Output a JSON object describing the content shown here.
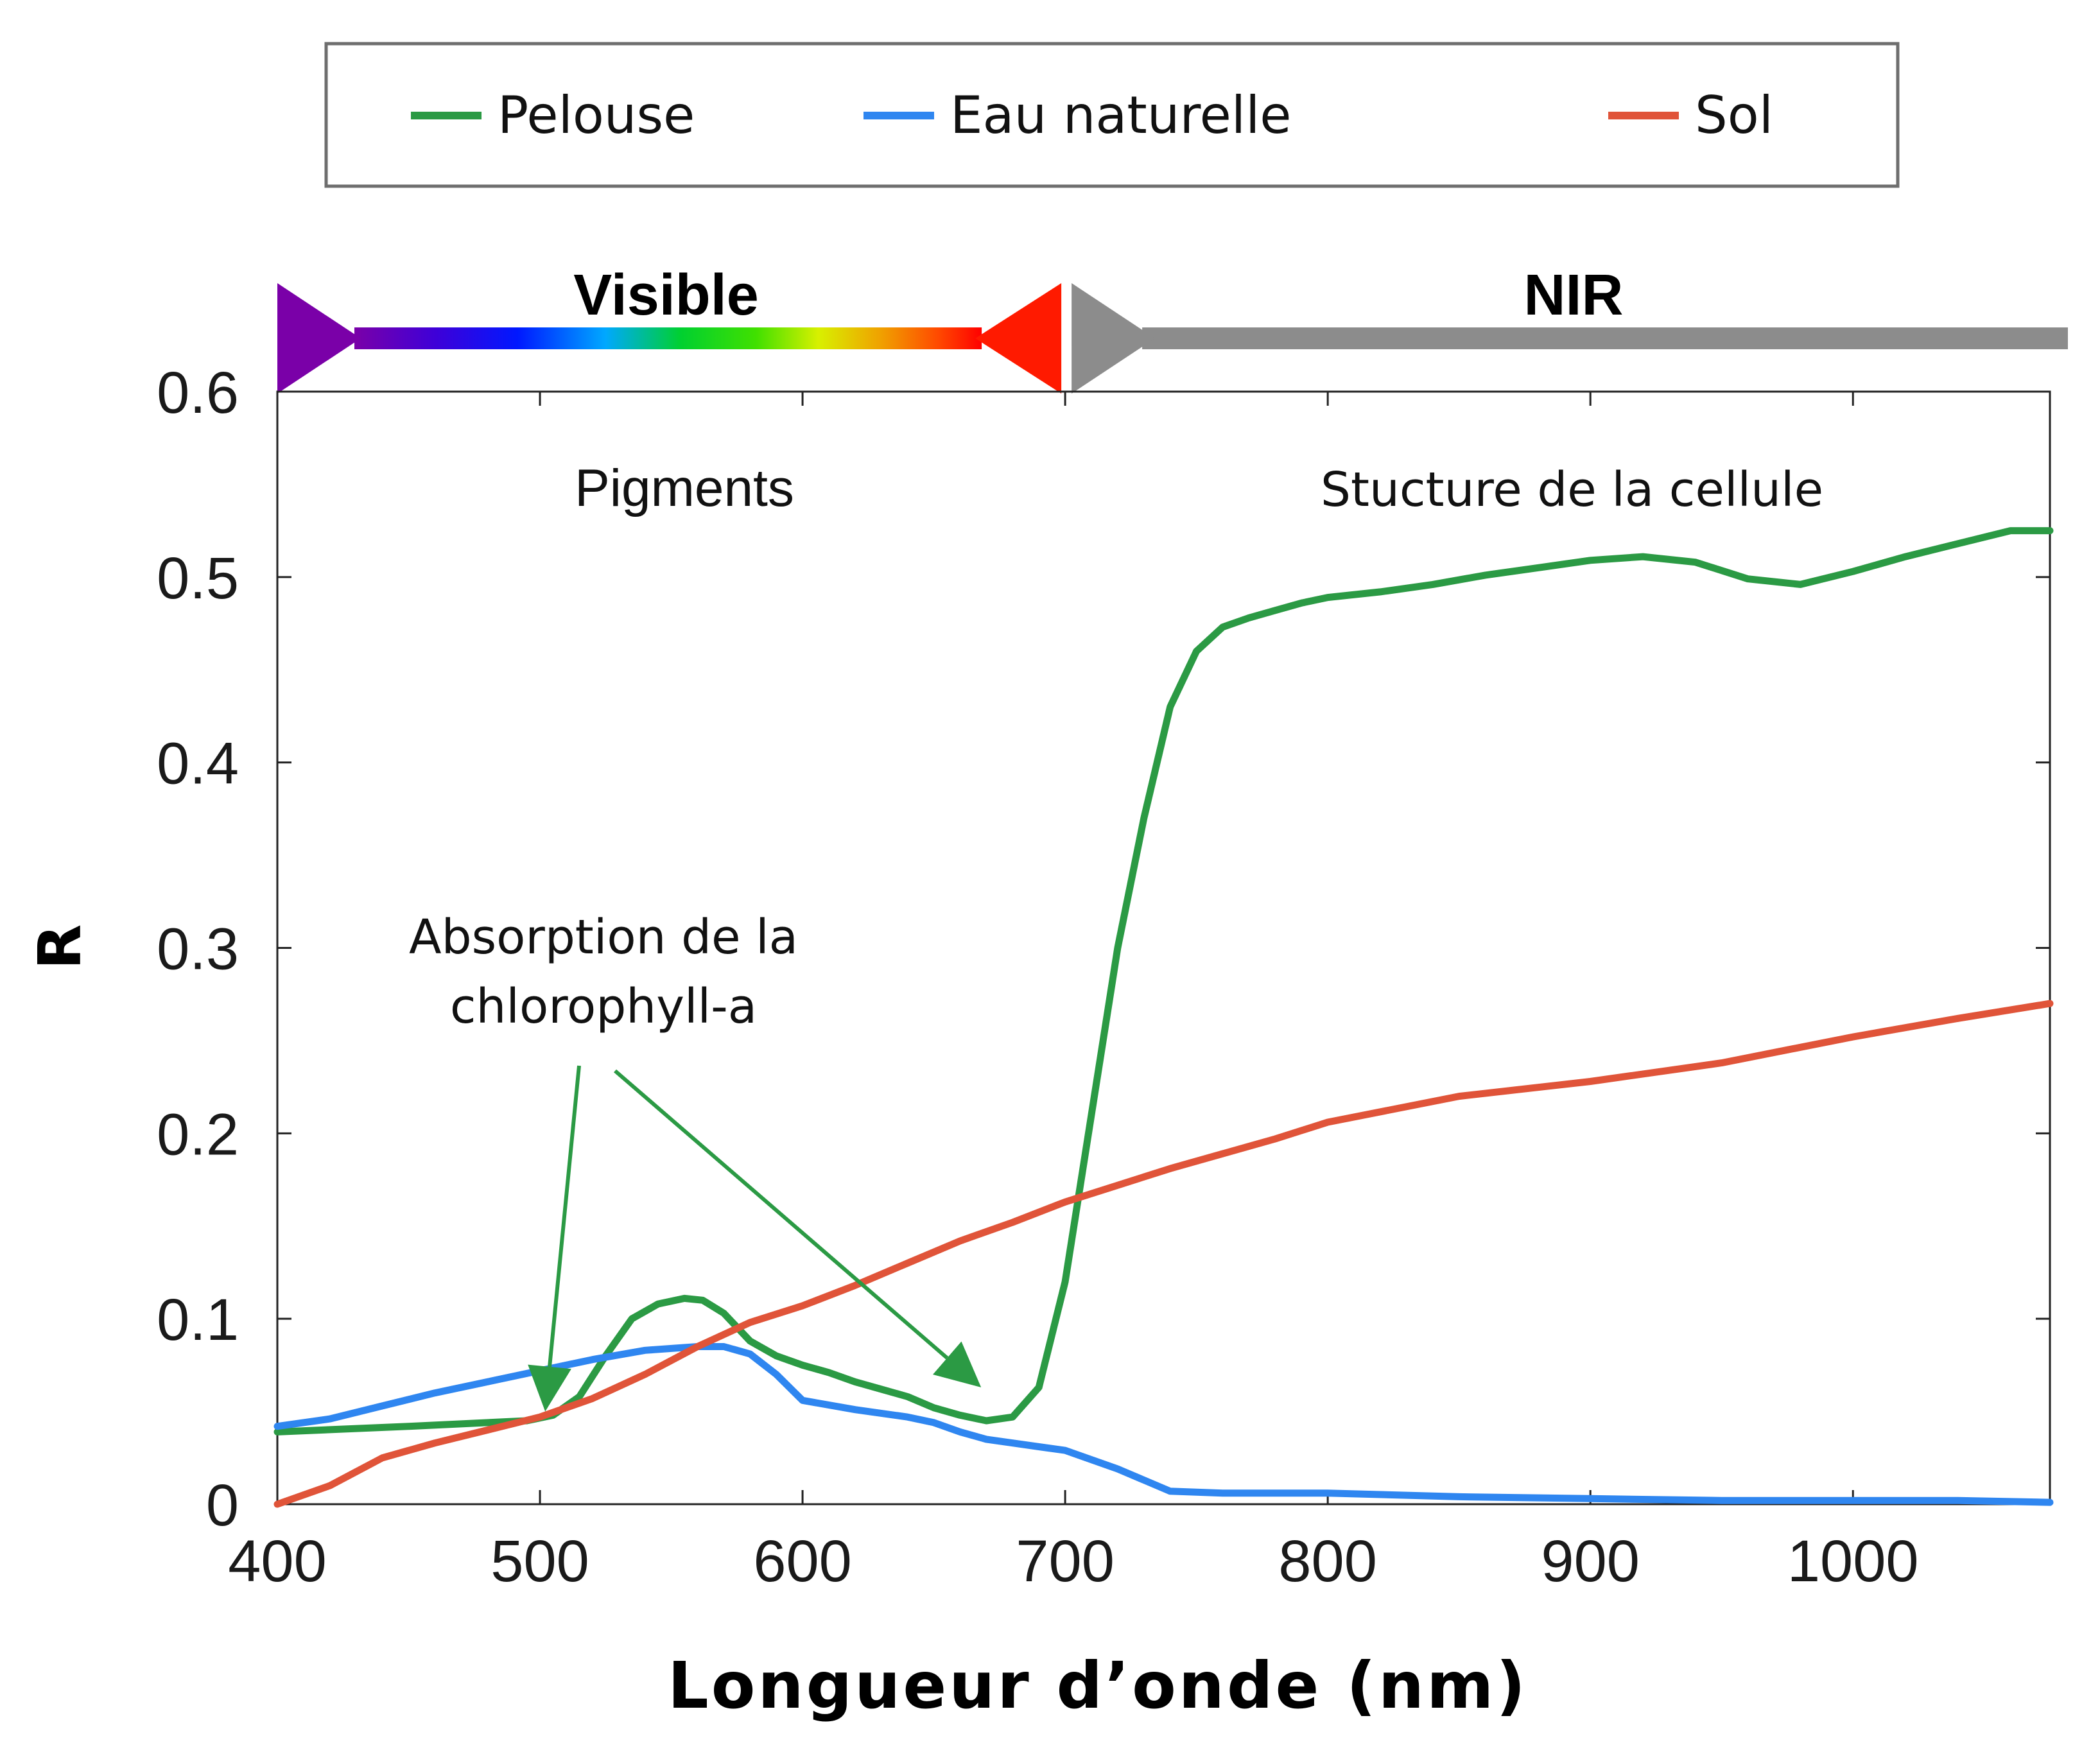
{
  "chart_data": {
    "type": "line",
    "xlabel": "Longueur d’onde (nm)",
    "ylabel": "R",
    "xlim": [
      400,
      1075
    ],
    "ylim": [
      0,
      0.6
    ],
    "x_ticks": [
      400,
      500,
      600,
      700,
      800,
      900,
      1000
    ],
    "x_tick_labels": [
      "400",
      "500",
      "600",
      "700",
      "800",
      "900",
      "1000"
    ],
    "y_ticks": [
      0,
      0.1,
      0.2,
      0.3,
      0.4,
      0.5,
      0.6
    ],
    "y_tick_labels": [
      "0",
      "0.1",
      "0.2",
      "0.3",
      "0.4",
      "0.5",
      "0.6"
    ],
    "grid": false,
    "legend_position": "top",
    "bands": [
      {
        "label": "Visible",
        "from": 400,
        "to": 700,
        "style": "spectrum"
      },
      {
        "label": "NIR",
        "from": 700,
        "to": 1075,
        "style": "gray"
      }
    ],
    "regions": [
      {
        "label": "Pigments",
        "x": 555,
        "y": 0.548
      },
      {
        "label": "Stucture de la cellule",
        "x": 893,
        "y": 0.548
      }
    ],
    "annotation": {
      "lines": [
        "Absorption de la",
        "chlorophyll-a"
      ],
      "arrow_targets": [
        {
          "x": 502,
          "y": 0.05
        },
        {
          "x": 668,
          "y": 0.063
        }
      ]
    },
    "series": [
      {
        "name": "Pelouse",
        "color": "#2b9a44",
        "x": [
          400,
          450,
          495,
          505,
          515,
          525,
          535,
          545,
          555,
          562,
          570,
          580,
          590,
          600,
          610,
          620,
          630,
          640,
          650,
          660,
          670,
          680,
          690,
          700,
          710,
          720,
          730,
          740,
          750,
          760,
          770,
          780,
          790,
          800,
          820,
          840,
          860,
          880,
          900,
          920,
          940,
          960,
          980,
          1000,
          1020,
          1040,
          1060,
          1075
        ],
        "y": [
          0.039,
          0.042,
          0.045,
          0.048,
          0.058,
          0.08,
          0.1,
          0.108,
          0.111,
          0.11,
          0.103,
          0.088,
          0.08,
          0.075,
          0.071,
          0.066,
          0.062,
          0.058,
          0.052,
          0.048,
          0.045,
          0.047,
          0.063,
          0.12,
          0.21,
          0.3,
          0.37,
          0.43,
          0.46,
          0.473,
          0.478,
          0.482,
          0.486,
          0.489,
          0.492,
          0.496,
          0.501,
          0.505,
          0.509,
          0.511,
          0.508,
          0.499,
          0.496,
          0.503,
          0.511,
          0.518,
          0.525,
          0.525
        ]
      },
      {
        "name": "Eau naturelle",
        "color": "#2f86f0",
        "x": [
          400,
          420,
          440,
          460,
          480,
          500,
          520,
          540,
          560,
          570,
          580,
          590,
          600,
          620,
          640,
          650,
          660,
          670,
          680,
          690,
          700,
          720,
          740,
          760,
          780,
          800,
          850,
          900,
          950,
          1000,
          1040,
          1075
        ],
        "y": [
          0.042,
          0.046,
          0.053,
          0.06,
          0.066,
          0.072,
          0.078,
          0.083,
          0.085,
          0.085,
          0.081,
          0.07,
          0.056,
          0.051,
          0.047,
          0.044,
          0.039,
          0.035,
          0.033,
          0.031,
          0.029,
          0.019,
          0.007,
          0.006,
          0.006,
          0.006,
          0.004,
          0.003,
          0.002,
          0.002,
          0.002,
          0.001
        ]
      },
      {
        "name": "Sol",
        "color": "#e05439",
        "x": [
          400,
          420,
          440,
          460,
          480,
          500,
          520,
          540,
          560,
          580,
          600,
          620,
          640,
          660,
          680,
          700,
          720,
          740,
          760,
          780,
          800,
          850,
          900,
          950,
          1000,
          1040,
          1075
        ],
        "y": [
          0.0,
          0.01,
          0.025,
          0.033,
          0.04,
          0.047,
          0.057,
          0.07,
          0.085,
          0.098,
          0.107,
          0.118,
          0.13,
          0.142,
          0.152,
          0.163,
          0.172,
          0.181,
          0.189,
          0.197,
          0.206,
          0.22,
          0.228,
          0.238,
          0.252,
          0.262,
          0.27
        ]
      }
    ]
  }
}
